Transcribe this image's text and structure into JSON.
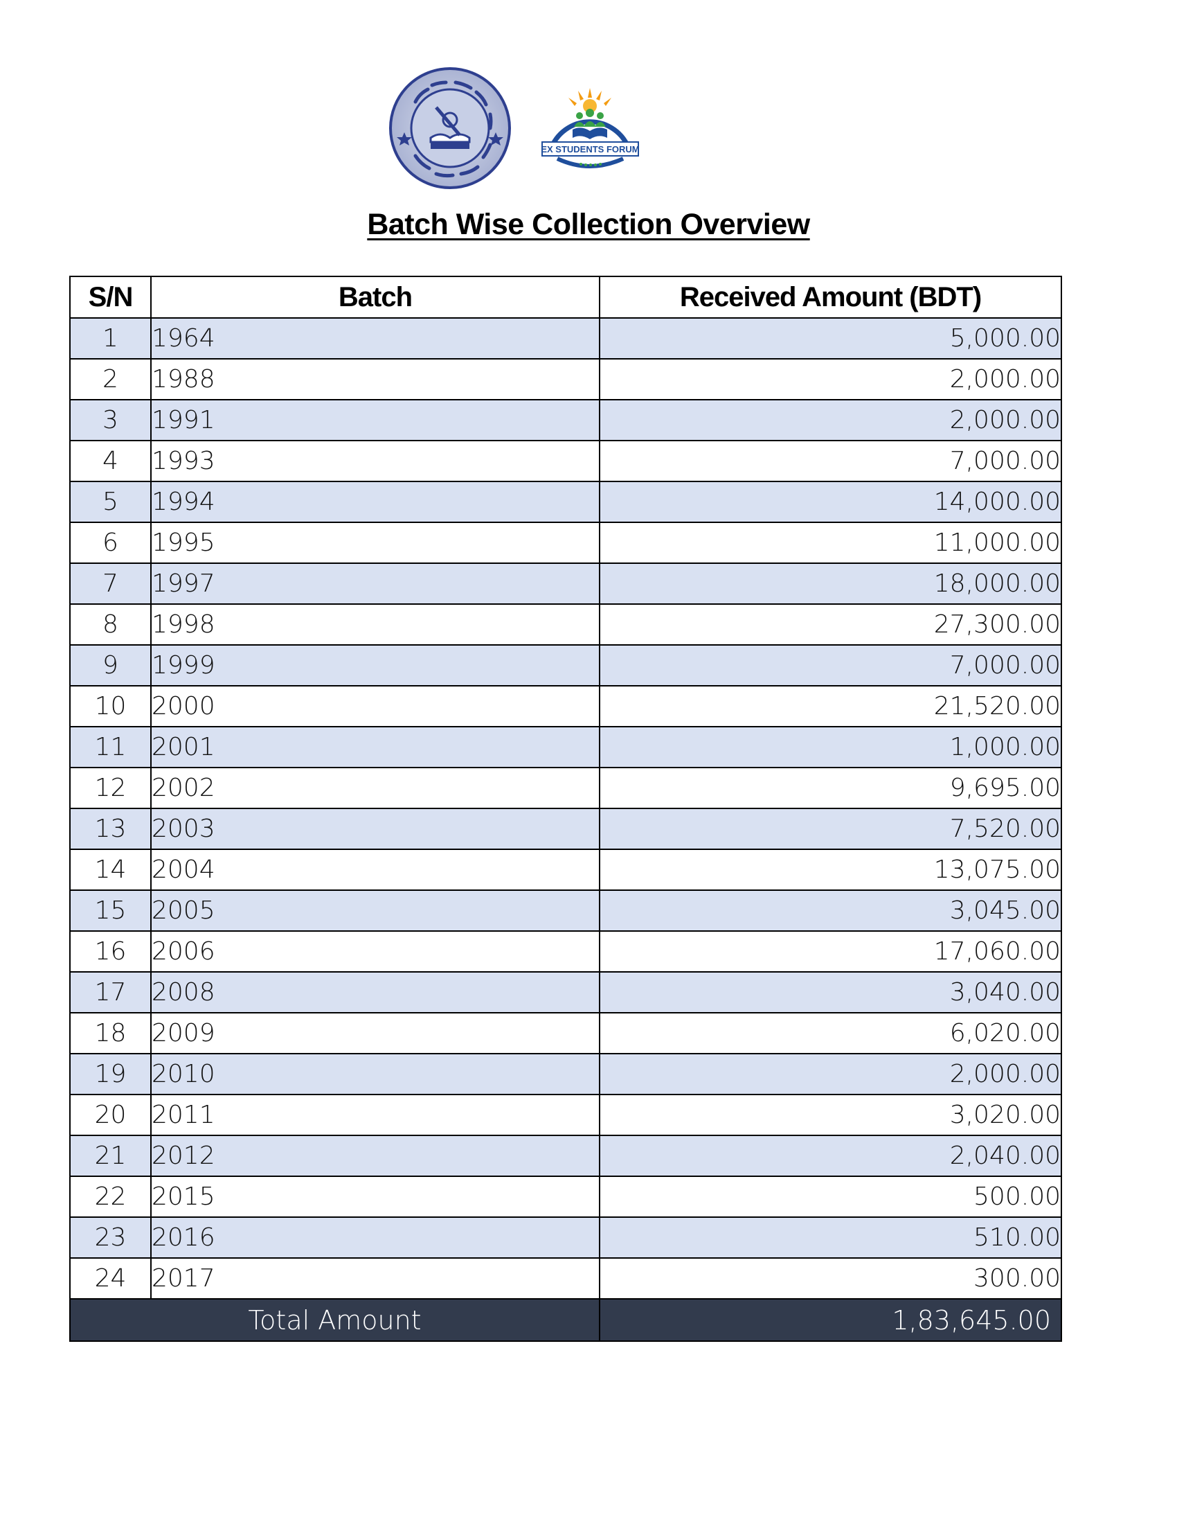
{
  "header": {
    "logos": [
      {
        "name": "school-seal",
        "description_icon": "school-seal-logo"
      },
      {
        "name": "forum-logo",
        "text": "EX STUDENTS FORUM"
      }
    ],
    "title": "Batch Wise Collection Overview"
  },
  "table": {
    "columns": [
      "S/N",
      "Batch",
      "Received Amount (BDT)"
    ],
    "rows": [
      {
        "sn": "1",
        "batch": "1964",
        "amount": "5,000.00"
      },
      {
        "sn": "2",
        "batch": "1988",
        "amount": "2,000.00"
      },
      {
        "sn": "3",
        "batch": "1991",
        "amount": "2,000.00"
      },
      {
        "sn": "4",
        "batch": "1993",
        "amount": "7,000.00"
      },
      {
        "sn": "5",
        "batch": "1994",
        "amount": "14,000.00"
      },
      {
        "sn": "6",
        "batch": "1995",
        "amount": "11,000.00"
      },
      {
        "sn": "7",
        "batch": "1997",
        "amount": "18,000.00"
      },
      {
        "sn": "8",
        "batch": "1998",
        "amount": "27,300.00"
      },
      {
        "sn": "9",
        "batch": "1999",
        "amount": "7,000.00"
      },
      {
        "sn": "10",
        "batch": "2000",
        "amount": "21,520.00"
      },
      {
        "sn": "11",
        "batch": "2001",
        "amount": "1,000.00"
      },
      {
        "sn": "12",
        "batch": "2002",
        "amount": "9,695.00"
      },
      {
        "sn": "13",
        "batch": "2003",
        "amount": "7,520.00"
      },
      {
        "sn": "14",
        "batch": "2004",
        "amount": "13,075.00"
      },
      {
        "sn": "15",
        "batch": "2005",
        "amount": "3,045.00"
      },
      {
        "sn": "16",
        "batch": "2006",
        "amount": "17,060.00"
      },
      {
        "sn": "17",
        "batch": "2008",
        "amount": "3,040.00"
      },
      {
        "sn": "18",
        "batch": "2009",
        "amount": "6,020.00"
      },
      {
        "sn": "19",
        "batch": "2010",
        "amount": "2,000.00"
      },
      {
        "sn": "20",
        "batch": "2011",
        "amount": "3,020.00"
      },
      {
        "sn": "21",
        "batch": "2012",
        "amount": "2,040.00"
      },
      {
        "sn": "22",
        "batch": "2015",
        "amount": "500.00"
      },
      {
        "sn": "23",
        "batch": "2016",
        "amount": "510.00"
      },
      {
        "sn": "24",
        "batch": "2017",
        "amount": "300.00"
      }
    ],
    "total_label": "Total Amount",
    "total_value": "1,83,645.00"
  },
  "colors": {
    "stripe": "#d9e1f2",
    "total_bg": "#323b4d",
    "total_text": "#ffffff",
    "seal_blue": "#2e3f8f",
    "forum_blue": "#1f4e9c",
    "forum_green": "#3aa346",
    "forum_orange": "#f39c12"
  }
}
